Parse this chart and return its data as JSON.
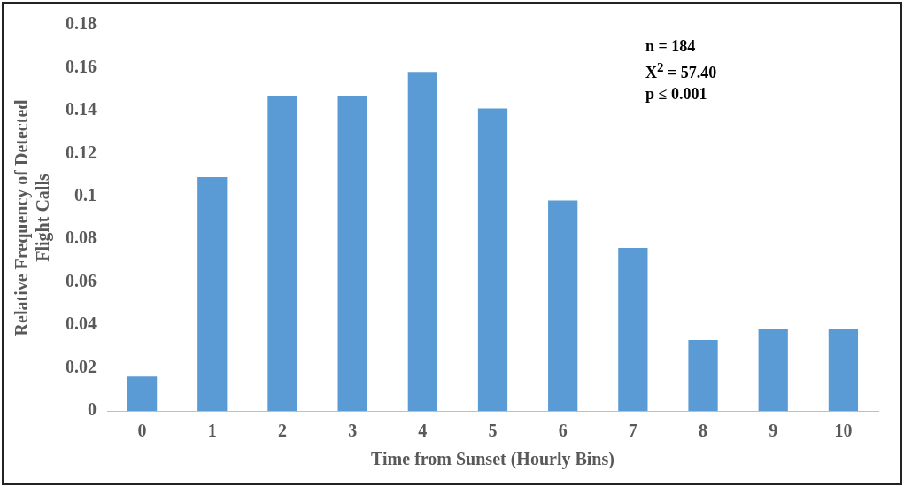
{
  "chart_data": {
    "type": "bar",
    "xlabel": "Time from Sunset (Hourly Bins)",
    "ylabel": "Relative Frequency of Detected Flight Calls",
    "categories": [
      "0",
      "1",
      "2",
      "3",
      "4",
      "5",
      "6",
      "7",
      "8",
      "9",
      "10"
    ],
    "values": [
      0.016,
      0.109,
      0.147,
      0.147,
      0.158,
      0.141,
      0.098,
      0.076,
      0.033,
      0.038,
      0.038
    ],
    "color": "#5b9bd5",
    "ylim": [
      0,
      0.18
    ],
    "yticks": [
      0,
      0.02,
      0.04,
      0.06,
      0.08,
      0.1,
      0.12,
      0.14,
      0.16,
      0.18
    ],
    "grid": false,
    "legend": false,
    "annotations": [
      "n = 184",
      "X$^{2}$ = 57.40",
      "p ≤ 0.001"
    ]
  }
}
